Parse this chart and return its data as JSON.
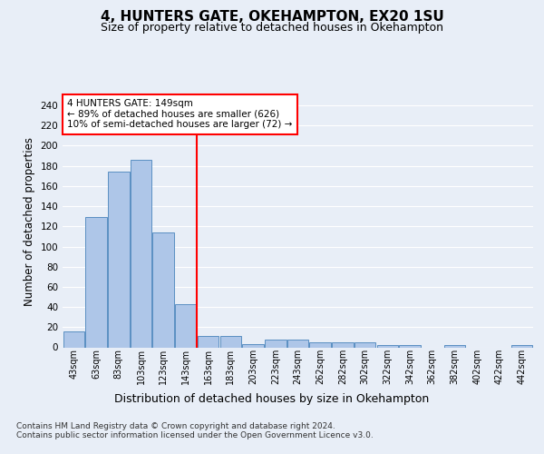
{
  "title1": "4, HUNTERS GATE, OKEHAMPTON, EX20 1SU",
  "title2": "Size of property relative to detached houses in Okehampton",
  "xlabel": "Distribution of detached houses by size in Okehampton",
  "ylabel": "Number of detached properties",
  "footer": "Contains HM Land Registry data © Crown copyright and database right 2024.\nContains public sector information licensed under the Open Government Licence v3.0.",
  "bar_labels": [
    "43sqm",
    "63sqm",
    "83sqm",
    "103sqm",
    "123sqm",
    "143sqm",
    "163sqm",
    "183sqm",
    "203sqm",
    "223sqm",
    "243sqm",
    "262sqm",
    "282sqm",
    "302sqm",
    "322sqm",
    "342sqm",
    "362sqm",
    "382sqm",
    "402sqm",
    "422sqm",
    "442sqm"
  ],
  "bar_values": [
    16,
    129,
    174,
    186,
    114,
    43,
    11,
    11,
    3,
    8,
    8,
    5,
    5,
    5,
    2,
    2,
    0,
    2,
    0,
    0,
    2
  ],
  "bar_color": "#aec6e8",
  "bar_edge_color": "#5a8fc2",
  "property_line_x": 5.5,
  "property_line_color": "red",
  "annotation_text": "4 HUNTERS GATE: 149sqm\n← 89% of detached houses are smaller (626)\n10% of semi-detached houses are larger (72) →",
  "annotation_box_color": "white",
  "annotation_box_edge_color": "red",
  "ylim": [
    0,
    250
  ],
  "yticks": [
    0,
    20,
    40,
    60,
    80,
    100,
    120,
    140,
    160,
    180,
    200,
    220,
    240
  ],
  "background_color": "#e8eef7",
  "plot_background_color": "#e8eef7",
  "grid_color": "white",
  "title1_fontsize": 11,
  "title2_fontsize": 9,
  "xlabel_fontsize": 9,
  "ylabel_fontsize": 8.5,
  "footer_fontsize": 6.5,
  "tick_fontsize": 7,
  "ytick_fontsize": 7.5,
  "annotation_fontsize": 7.5
}
